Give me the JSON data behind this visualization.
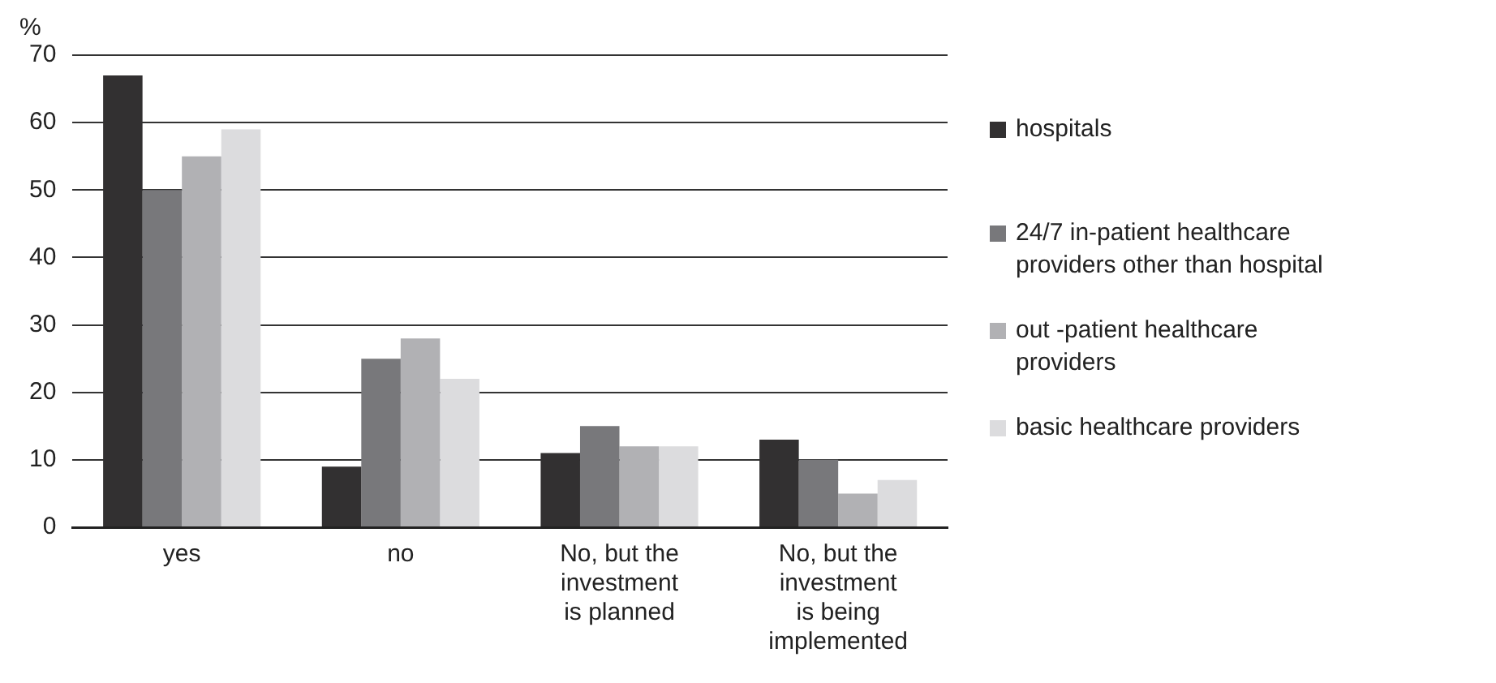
{
  "chart_data": {
    "type": "bar",
    "ylabel": "%",
    "categories": [
      "yes",
      "no",
      "No, but the investment is planned",
      "No, but the investment is being implemented"
    ],
    "series": [
      {
        "name": "hospitals",
        "color": "#323031",
        "values": [
          67,
          9,
          11,
          13
        ]
      },
      {
        "name": "24/7 in-patient healthcare providers other than hospital",
        "color": "#78787b",
        "values": [
          50,
          25,
          15,
          10
        ]
      },
      {
        "name": "out -patient healthcare providers",
        "color": "#b1b1b4",
        "values": [
          55,
          28,
          12,
          5
        ]
      },
      {
        "name": "basic healthcare providers",
        "color": "#dcdcde",
        "values": [
          59,
          22,
          12,
          7
        ]
      }
    ],
    "ylim": [
      0,
      70
    ],
    "yticks": [
      0,
      10,
      20,
      30,
      40,
      50,
      60,
      70
    ],
    "grid": "y",
    "legend": "right"
  }
}
